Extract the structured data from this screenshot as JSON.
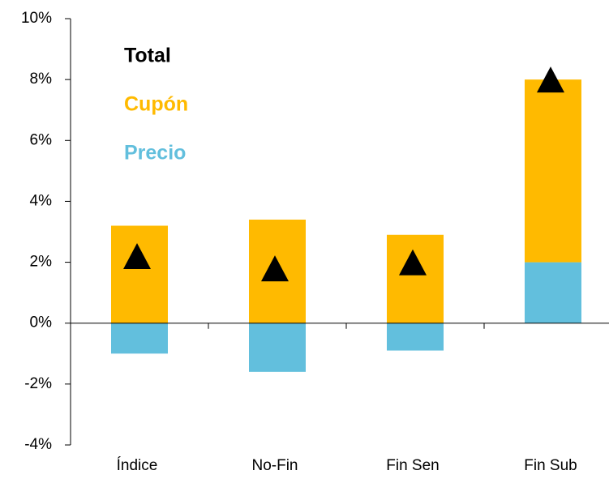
{
  "chart_data": {
    "type": "bar",
    "stacked": true,
    "categories": [
      "Índice",
      "No-Fin",
      "Fin Sen",
      "Fin Sub"
    ],
    "series": [
      {
        "name": "Precio",
        "color": "#62bfdd",
        "values": [
          -1.0,
          -1.6,
          -0.9,
          2.0
        ]
      },
      {
        "name": "Cupón",
        "color": "#ffba00",
        "values": [
          3.2,
          3.4,
          2.9,
          6.0
        ]
      },
      {
        "name": "Total",
        "color": "#000000",
        "marker": "triangle",
        "values": [
          2.2,
          1.8,
          2.0,
          8.0
        ]
      }
    ],
    "ylim": [
      -4,
      10
    ],
    "yticks": [
      {
        "value": -4,
        "label": "-4%"
      },
      {
        "value": -2,
        "label": "-2%"
      },
      {
        "value": 0,
        "label": "0%"
      },
      {
        "value": 2,
        "label": "2%"
      },
      {
        "value": 4,
        "label": "4%"
      },
      {
        "value": 6,
        "label": "6%"
      },
      {
        "value": 8,
        "label": "8%"
      },
      {
        "value": 10,
        "label": "10%"
      }
    ],
    "legend": "top-left"
  }
}
